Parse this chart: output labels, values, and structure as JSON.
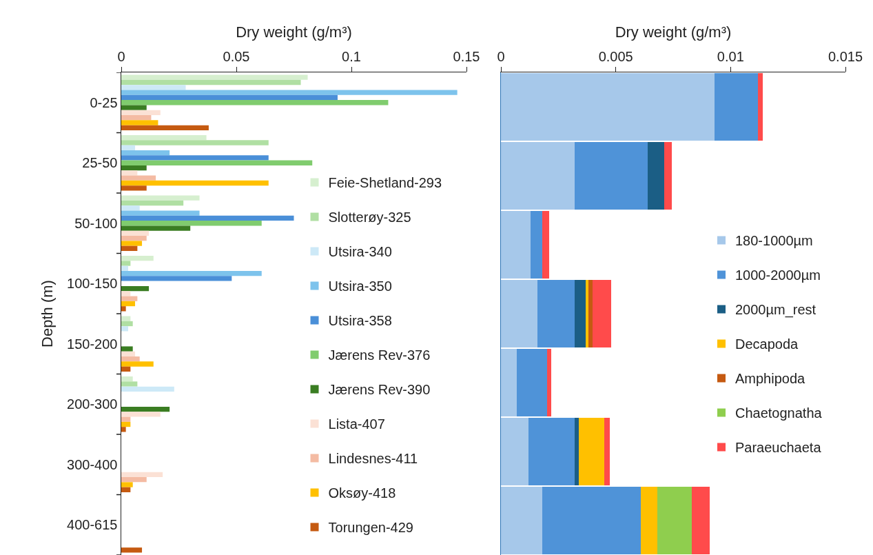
{
  "chart_data": [
    {
      "type": "bar",
      "orientation": "horizontal",
      "xlabel": "Dry weight (g/m³)",
      "ylabel": "Depth (m)",
      "categories": [
        "0-25",
        "25-50",
        "50-100",
        "100-150",
        "150-200",
        "200-300",
        "300-400",
        "400-615"
      ],
      "xlim": [
        0,
        0.15
      ],
      "xticks": [
        0,
        0.05,
        0.1,
        0.15
      ],
      "grid": false,
      "legend": "bottom right",
      "series": [
        {
          "name": "Feie-Shetland-293",
          "color": "#d6efcf",
          "values": [
            0.081,
            0.037,
            0.034,
            0.014,
            0.004,
            0.005,
            0,
            0
          ]
        },
        {
          "name": "Slotterøy-325",
          "color": "#b0dfa3",
          "values": [
            0.078,
            0.064,
            0.027,
            0.004,
            0.005,
            0.007,
            0,
            0
          ]
        },
        {
          "name": "Utsira-340",
          "color": "#cde9f7",
          "values": [
            0.028,
            0.006,
            0.008,
            0.003,
            0.003,
            0.023,
            0,
            0
          ]
        },
        {
          "name": "Utsira-350",
          "color": "#7dc3ec",
          "values": [
            0.146,
            0.021,
            0.034,
            0.061,
            0,
            0,
            0,
            0
          ]
        },
        {
          "name": "Utsira-358",
          "color": "#4a8fd8",
          "values": [
            0.094,
            0.064,
            0.075,
            0.048,
            0,
            0,
            0,
            0
          ]
        },
        {
          "name": "Jærens Rev-376",
          "color": "#80cc6e",
          "values": [
            0.116,
            0.083,
            0.061,
            0,
            0,
            0,
            0,
            0
          ]
        },
        {
          "name": "Jærens Rev-390",
          "color": "#3a7d22",
          "values": [
            0.011,
            0.011,
            0.03,
            0.012,
            0.005,
            0.021,
            0,
            0
          ]
        },
        {
          "name": "Lista-407",
          "color": "#fbe1d5",
          "values": [
            0.017,
            0.007,
            0.012,
            0.004,
            0.006,
            0.017,
            0.018,
            0
          ]
        },
        {
          "name": "Lindesnes-411",
          "color": "#f4bba3",
          "values": [
            0.013,
            0.015,
            0.011,
            0.007,
            0.008,
            0.004,
            0.011,
            0
          ]
        },
        {
          "name": "Oksøy-418",
          "color": "#ffc000",
          "values": [
            0.016,
            0.064,
            0.009,
            0.006,
            0.014,
            0.004,
            0.005,
            0
          ]
        },
        {
          "name": "Torungen-429",
          "color": "#c55a11",
          "values": [
            0.038,
            0.011,
            0.007,
            0.002,
            0.004,
            0.002,
            0.004,
            0.009
          ]
        }
      ]
    },
    {
      "type": "bar",
      "orientation": "horizontal",
      "stacked": true,
      "xlabel": "Dry weight (g/m³)",
      "categories": [
        null,
        null,
        null,
        null,
        null,
        null,
        null
      ],
      "xlim": [
        0,
        0.015
      ],
      "xticks": [
        0,
        0.005,
        0.01,
        0.015
      ],
      "tick_labels": "x",
      "grid": false,
      "legend": "right",
      "series": [
        {
          "name": "180-1000µm",
          "color": "#a6c8ea",
          "values": [
            0.0093,
            0.0032,
            0.0013,
            0.0016,
            0.0007,
            0.0012,
            0.0018
          ]
        },
        {
          "name": "1000-2000µm",
          "color": "#4f93d8",
          "values": [
            0.0019,
            0.0032,
            0.0005,
            0.0016,
            0.0013,
            0.002,
            0.0043
          ]
        },
        {
          "name": "2000µm_rest",
          "color": "#1b5e85",
          "values": [
            0,
            0.0007,
            0,
            0.0005,
            0,
            0.0002,
            0
          ]
        },
        {
          "name": "Decapoda",
          "color": "#ffc000",
          "values": [
            0,
            0,
            0,
            0.0001,
            0,
            0.0011,
            0.0007
          ]
        },
        {
          "name": "Amphipoda",
          "color": "#c55a11",
          "values": [
            0,
            0,
            0,
            0.0002,
            0,
            0,
            0
          ]
        },
        {
          "name": "Chaetognatha",
          "color": "#8fce4e",
          "values": [
            0,
            0,
            0,
            0,
            0,
            0,
            0.0015
          ]
        },
        {
          "name": "Paraeuchaeta",
          "color": "#ff4b4b",
          "values": [
            0.0002,
            0.00035,
            0.0003,
            0.0008,
            0.0002,
            0.00025,
            0.0008
          ]
        }
      ]
    }
  ]
}
